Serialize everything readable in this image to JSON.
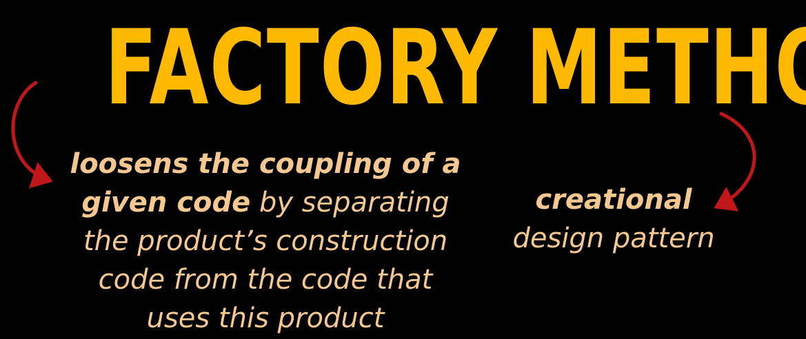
{
  "title": "FACTORY METHOD",
  "left": {
    "strong_lines": [
      "loosens the coupling of a",
      "given code"
    ],
    "after_strong": " by separating",
    "lines": [
      "the product’s construction",
      "code from the code that",
      "uses this product"
    ]
  },
  "right": {
    "strong": "creational",
    "line": "design pattern"
  },
  "colors": {
    "background": "#000000",
    "title": "#FFB900",
    "text": "#F6C891",
    "arrow": "#C0171A"
  },
  "icons": {
    "left_arrow": "curved-arrow-icon",
    "right_arrow": "curved-arrow-icon"
  }
}
